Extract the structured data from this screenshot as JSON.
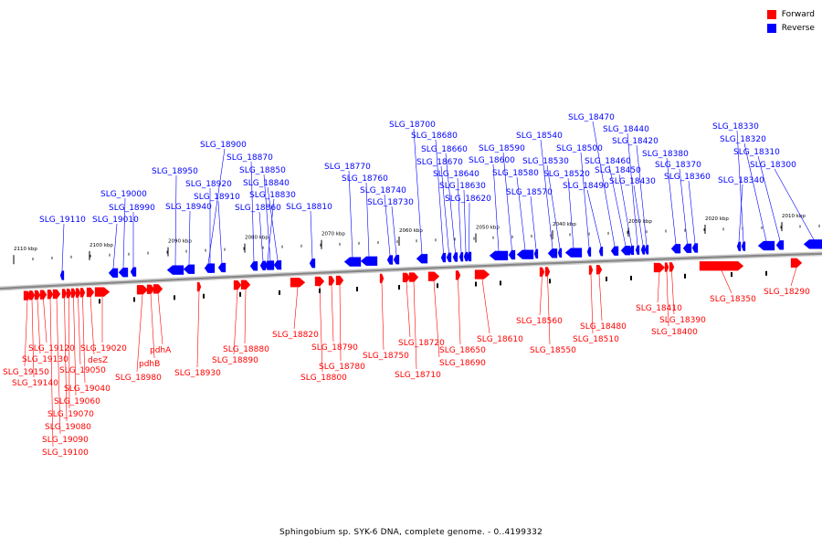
{
  "caption": "Sphingobium sp. SYK-6 DNA, complete genome. - 0..4199332",
  "legend": [
    {
      "label": "Forward",
      "color": "#ff0000"
    },
    {
      "label": "Reverse",
      "color": "#0000ff"
    }
  ],
  "colors": {
    "forward": "#ff0000",
    "reverse": "#0000ff",
    "backbone": "#888888"
  },
  "ruler_labels": [
    "2110 kbp",
    "2100 kbp",
    "2090 kbp",
    "2080 kbp",
    "2070 kbp",
    "2060 kbp",
    "2050 kbp",
    "2040 kbp",
    "2030 kbp",
    "2020 kbp",
    "2010 kbp"
  ],
  "reverse_genes": [
    "SLG_19110",
    "SLG_19010",
    "SLG_19000",
    "SLG_18990",
    "SLG_18950",
    "SLG_18940",
    "SLG_18920",
    "SLG_18910",
    "SLG_18900",
    "SLG_18870",
    "SLG_18860",
    "SLG_18850",
    "SLG_18840",
    "SLG_18830",
    "SLG_18810",
    "SLG_18770",
    "SLG_18760",
    "SLG_18740",
    "SLG_18730",
    "SLG_18700",
    "SLG_18680",
    "SLG_18670",
    "SLG_18660",
    "SLG_18640",
    "SLG_18630",
    "SLG_18620",
    "SLG_18600",
    "SLG_18590",
    "SLG_18580",
    "SLG_18570",
    "SLG_18540",
    "SLG_18530",
    "SLG_18520",
    "SLG_18500",
    "SLG_18490",
    "SLG_18470",
    "SLG_18460",
    "SLG_18450",
    "SLG_18440",
    "SLG_18430",
    "SLG_18420",
    "SLG_18380",
    "SLG_18370",
    "SLG_18360",
    "SLG_18340",
    "SLG_18330",
    "SLG_18320",
    "SLG_18310",
    "SLG_18300"
  ],
  "forward_genes": [
    "SLG_19150",
    "SLG_19140",
    "SLG_19130",
    "SLG_19120",
    "SLG_19100",
    "SLG_19090",
    "SLG_19080",
    "SLG_19070",
    "SLG_19060",
    "SLG_19050",
    "SLG_19040",
    "desZ",
    "SLG_19020",
    "SLG_18980",
    "pdhB",
    "pdhA",
    "SLG_18930",
    "SLG_18890",
    "SLG_18880",
    "SLG_18820",
    "SLG_18800",
    "SLG_18790",
    "SLG_18780",
    "SLG_18750",
    "SLG_18720",
    "SLG_18710",
    "SLG_18690",
    "SLG_18650",
    "SLG_18610",
    "SLG_18560",
    "SLG_18550",
    "SLG_18510",
    "SLG_18480",
    "SLG_18410",
    "SLG_18400",
    "SLG_18390",
    "SLG_18350",
    "SLG_18290"
  ]
}
